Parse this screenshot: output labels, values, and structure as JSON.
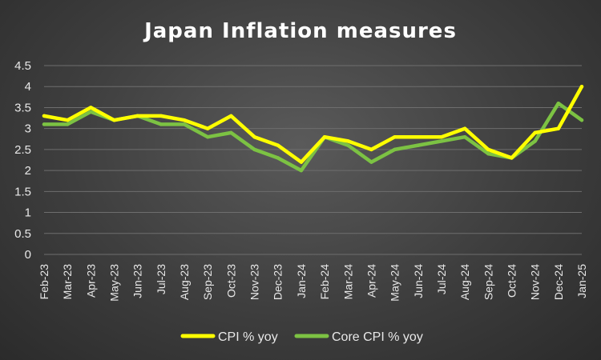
{
  "chart_data": {
    "type": "line",
    "title": "Japan Inflation measures",
    "xlabel": "",
    "ylabel": "",
    "ylim": [
      0,
      4.5
    ],
    "yticks": [
      "0",
      "0.5",
      "1",
      "1.5",
      "2",
      "2.5",
      "3",
      "3.5",
      "4",
      "4.5"
    ],
    "categories": [
      "Feb-23",
      "Mar-23",
      "Apr-23",
      "May-23",
      "Jun-23",
      "Jul-23",
      "Aug-23",
      "Sep-23",
      "Oct-23",
      "Nov-23",
      "Dec-23",
      "Jan-24",
      "Feb-24",
      "Mar-24",
      "Apr-24",
      "May-24",
      "Jun-24",
      "Jul-24",
      "Aug-24",
      "Sep-24",
      "Oct-24",
      "Nov-24",
      "Dec-24",
      "Jan-25"
    ],
    "grid": true,
    "legend_position": "bottom",
    "series": [
      {
        "name": "CPI % yoy",
        "color": "#ffff00",
        "values": [
          3.3,
          3.2,
          3.5,
          3.2,
          3.3,
          3.3,
          3.2,
          3.0,
          3.3,
          2.8,
          2.6,
          2.2,
          2.8,
          2.7,
          2.5,
          2.8,
          2.8,
          2.8,
          3.0,
          2.5,
          2.3,
          2.9,
          3.0,
          4.0
        ]
      },
      {
        "name": "Core CPI % yoy",
        "color": "#7cc243",
        "values": [
          3.1,
          3.1,
          3.4,
          3.2,
          3.3,
          3.1,
          3.1,
          2.8,
          2.9,
          2.5,
          2.3,
          2.0,
          2.8,
          2.6,
          2.2,
          2.5,
          2.6,
          2.7,
          2.8,
          2.4,
          2.3,
          2.7,
          3.6,
          3.2
        ]
      }
    ]
  }
}
